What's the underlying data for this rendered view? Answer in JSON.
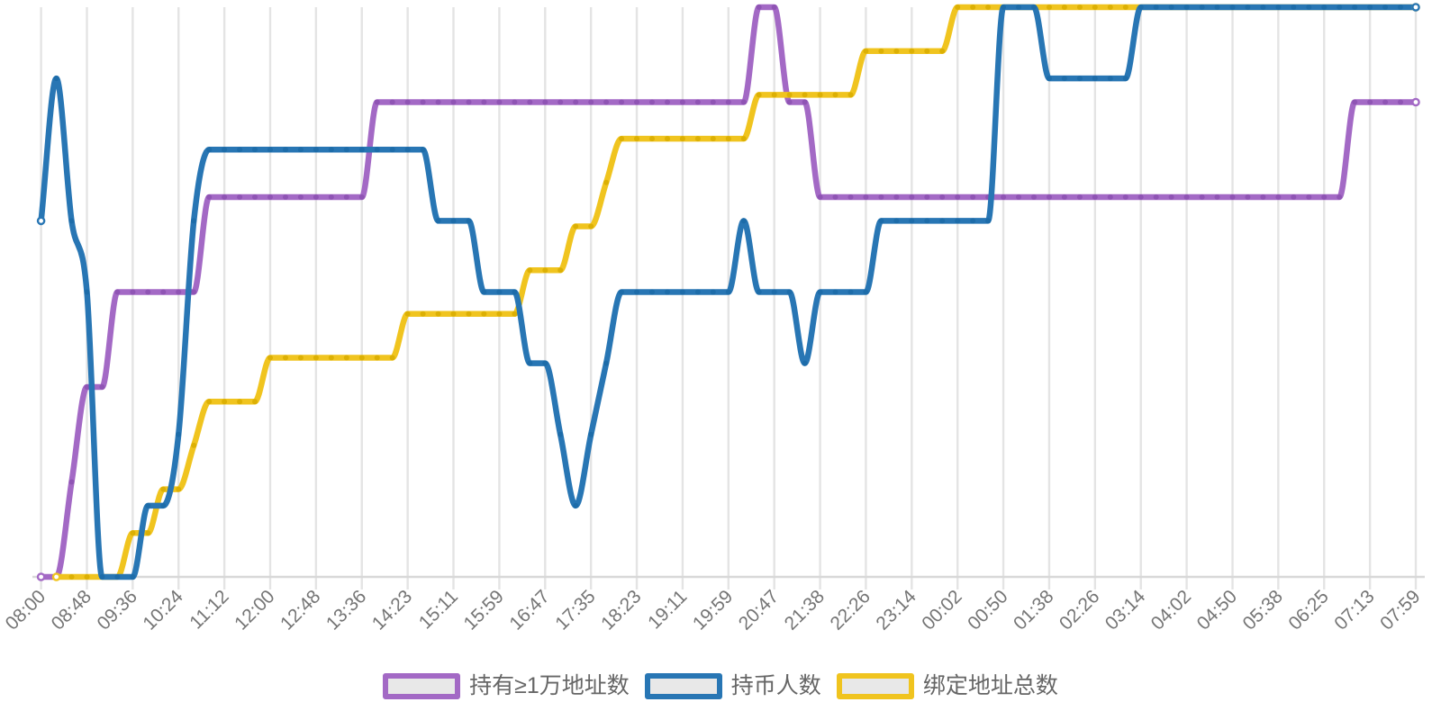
{
  "chart_data": {
    "type": "line",
    "title": "",
    "x_labels": [
      "08:00",
      "08:48",
      "09:36",
      "10:24",
      "11:12",
      "12:00",
      "12:48",
      "13:36",
      "14:23",
      "15:11",
      "15:59",
      "16:47",
      "17:35",
      "18:23",
      "19:11",
      "19:59",
      "20:47",
      "21:38",
      "22:26",
      "23:14",
      "00:02",
      "00:50",
      "01:38",
      "02:26",
      "03:14",
      "04:02",
      "04:50",
      "05:38",
      "06:25",
      "07:13",
      "07:59"
    ],
    "points_per_label_interval": 3,
    "x_label_rotation_deg": 45,
    "grid": true,
    "legend_position": "bottom",
    "y_axis": {
      "tick_labels_visible": false,
      "scaling": "each series normalized so its own max level reaches the plot top"
    },
    "series": [
      {
        "id": "addr_ge_10k",
        "name": "持有≥1万地址数",
        "color": "#a369c5",
        "marker_color": "#8f54b4",
        "y_max": 6,
        "start_index": 0,
        "values": [
          0,
          0,
          1,
          2,
          2,
          3,
          3,
          3,
          3,
          3,
          3,
          4,
          4,
          4,
          4,
          4,
          4,
          4,
          4,
          4,
          4,
          4,
          5,
          5,
          5,
          5,
          5,
          5,
          5,
          5,
          5,
          5,
          5,
          5,
          5,
          5,
          5,
          5,
          5,
          5,
          5,
          5,
          5,
          5,
          5,
          5,
          5,
          6,
          6,
          5,
          5,
          4,
          4,
          4,
          4,
          4,
          4,
          4,
          4,
          4,
          4,
          4,
          4,
          4,
          4,
          4,
          4,
          4,
          4,
          4,
          4,
          4,
          4,
          4,
          4,
          4,
          4,
          4,
          4,
          4,
          4,
          4,
          4,
          4,
          4,
          4,
          5,
          5,
          5,
          5,
          5
        ]
      },
      {
        "id": "holders",
        "name": "持币人数",
        "color": "#2876b4",
        "marker_color": "#1d6ca9",
        "y_max": 8,
        "start_index": 0,
        "values": [
          5,
          7,
          5,
          4,
          0,
          0,
          0,
          1,
          1,
          2,
          5,
          6,
          6,
          6,
          6,
          6,
          6,
          6,
          6,
          6,
          6,
          6,
          6,
          6,
          6,
          6,
          5,
          5,
          5,
          4,
          4,
          4,
          3,
          3,
          2,
          1,
          2,
          3,
          4,
          4,
          4,
          4,
          4,
          4,
          4,
          4,
          5,
          4,
          4,
          4,
          3,
          4,
          4,
          4,
          4,
          5,
          5,
          5,
          5,
          5,
          5,
          5,
          5,
          8,
          8,
          8,
          7,
          7,
          7,
          7,
          7,
          7,
          8,
          8,
          8,
          8,
          8,
          8,
          8,
          8,
          8,
          8,
          8,
          8,
          8,
          8,
          8,
          8,
          8,
          8,
          8
        ]
      },
      {
        "id": "bound_addr",
        "name": "绑定地址总数",
        "color": "#f0c41f",
        "marker_color": "#dcb004",
        "y_max": 13,
        "start_index": 1,
        "values": [
          0,
          0,
          0,
          0,
          0,
          1,
          1,
          2,
          2,
          3,
          4,
          4,
          4,
          4,
          5,
          5,
          5,
          5,
          5,
          5,
          5,
          5,
          5,
          6,
          6,
          6,
          6,
          6,
          6,
          6,
          6,
          7,
          7,
          7,
          8,
          8,
          9,
          10,
          10,
          10,
          10,
          10,
          10,
          10,
          10,
          10,
          11,
          11,
          11,
          11,
          11,
          11,
          11,
          12,
          12,
          12,
          12,
          12,
          12,
          13,
          13,
          13,
          13,
          13,
          13,
          13,
          13,
          13,
          13,
          13,
          13,
          13,
          13,
          13,
          13,
          13,
          13,
          13,
          13,
          13,
          13,
          13,
          13,
          13,
          13,
          13,
          13,
          13,
          13,
          13
        ]
      }
    ],
    "colors": {
      "gridline": "#e4e4e4",
      "axis_line": "#d8d8d8",
      "tick_text": "#757575",
      "legend_text": "#666666",
      "legend_swatch_fill": "#e8e8e8"
    }
  }
}
